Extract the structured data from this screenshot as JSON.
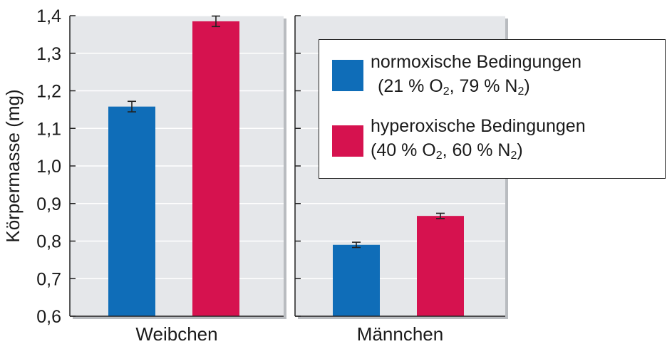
{
  "chart_data": {
    "type": "bar",
    "ylabel": "Körpermasse (mg)",
    "ylim": [
      0.6,
      1.4
    ],
    "yticks": [
      0.6,
      0.7,
      0.8,
      0.9,
      1.0,
      1.1,
      1.2,
      1.3,
      1.4
    ],
    "ytick_labels": [
      "0,6",
      "0,7",
      "0,8",
      "0,9",
      "1,0",
      "1,1",
      "1,2",
      "1,3",
      "1,4"
    ],
    "grid": true,
    "legend_position": "top-right",
    "categories": [
      "Weibchen",
      "Männchen"
    ],
    "series": [
      {
        "name": "normoxische Bedingungen",
        "name_detail": "(21 % O2, 79 % N2)",
        "color": "#0f6db8",
        "values": [
          1.158,
          0.79
        ],
        "errors": [
          0.014,
          0.007
        ]
      },
      {
        "name": "hyperoxische Bedingungen",
        "name_detail": "(40 % O2, 60 % N2)",
        "color": "#d6124f",
        "values": [
          1.385,
          0.867
        ],
        "errors": [
          0.014,
          0.007
        ]
      }
    ]
  }
}
